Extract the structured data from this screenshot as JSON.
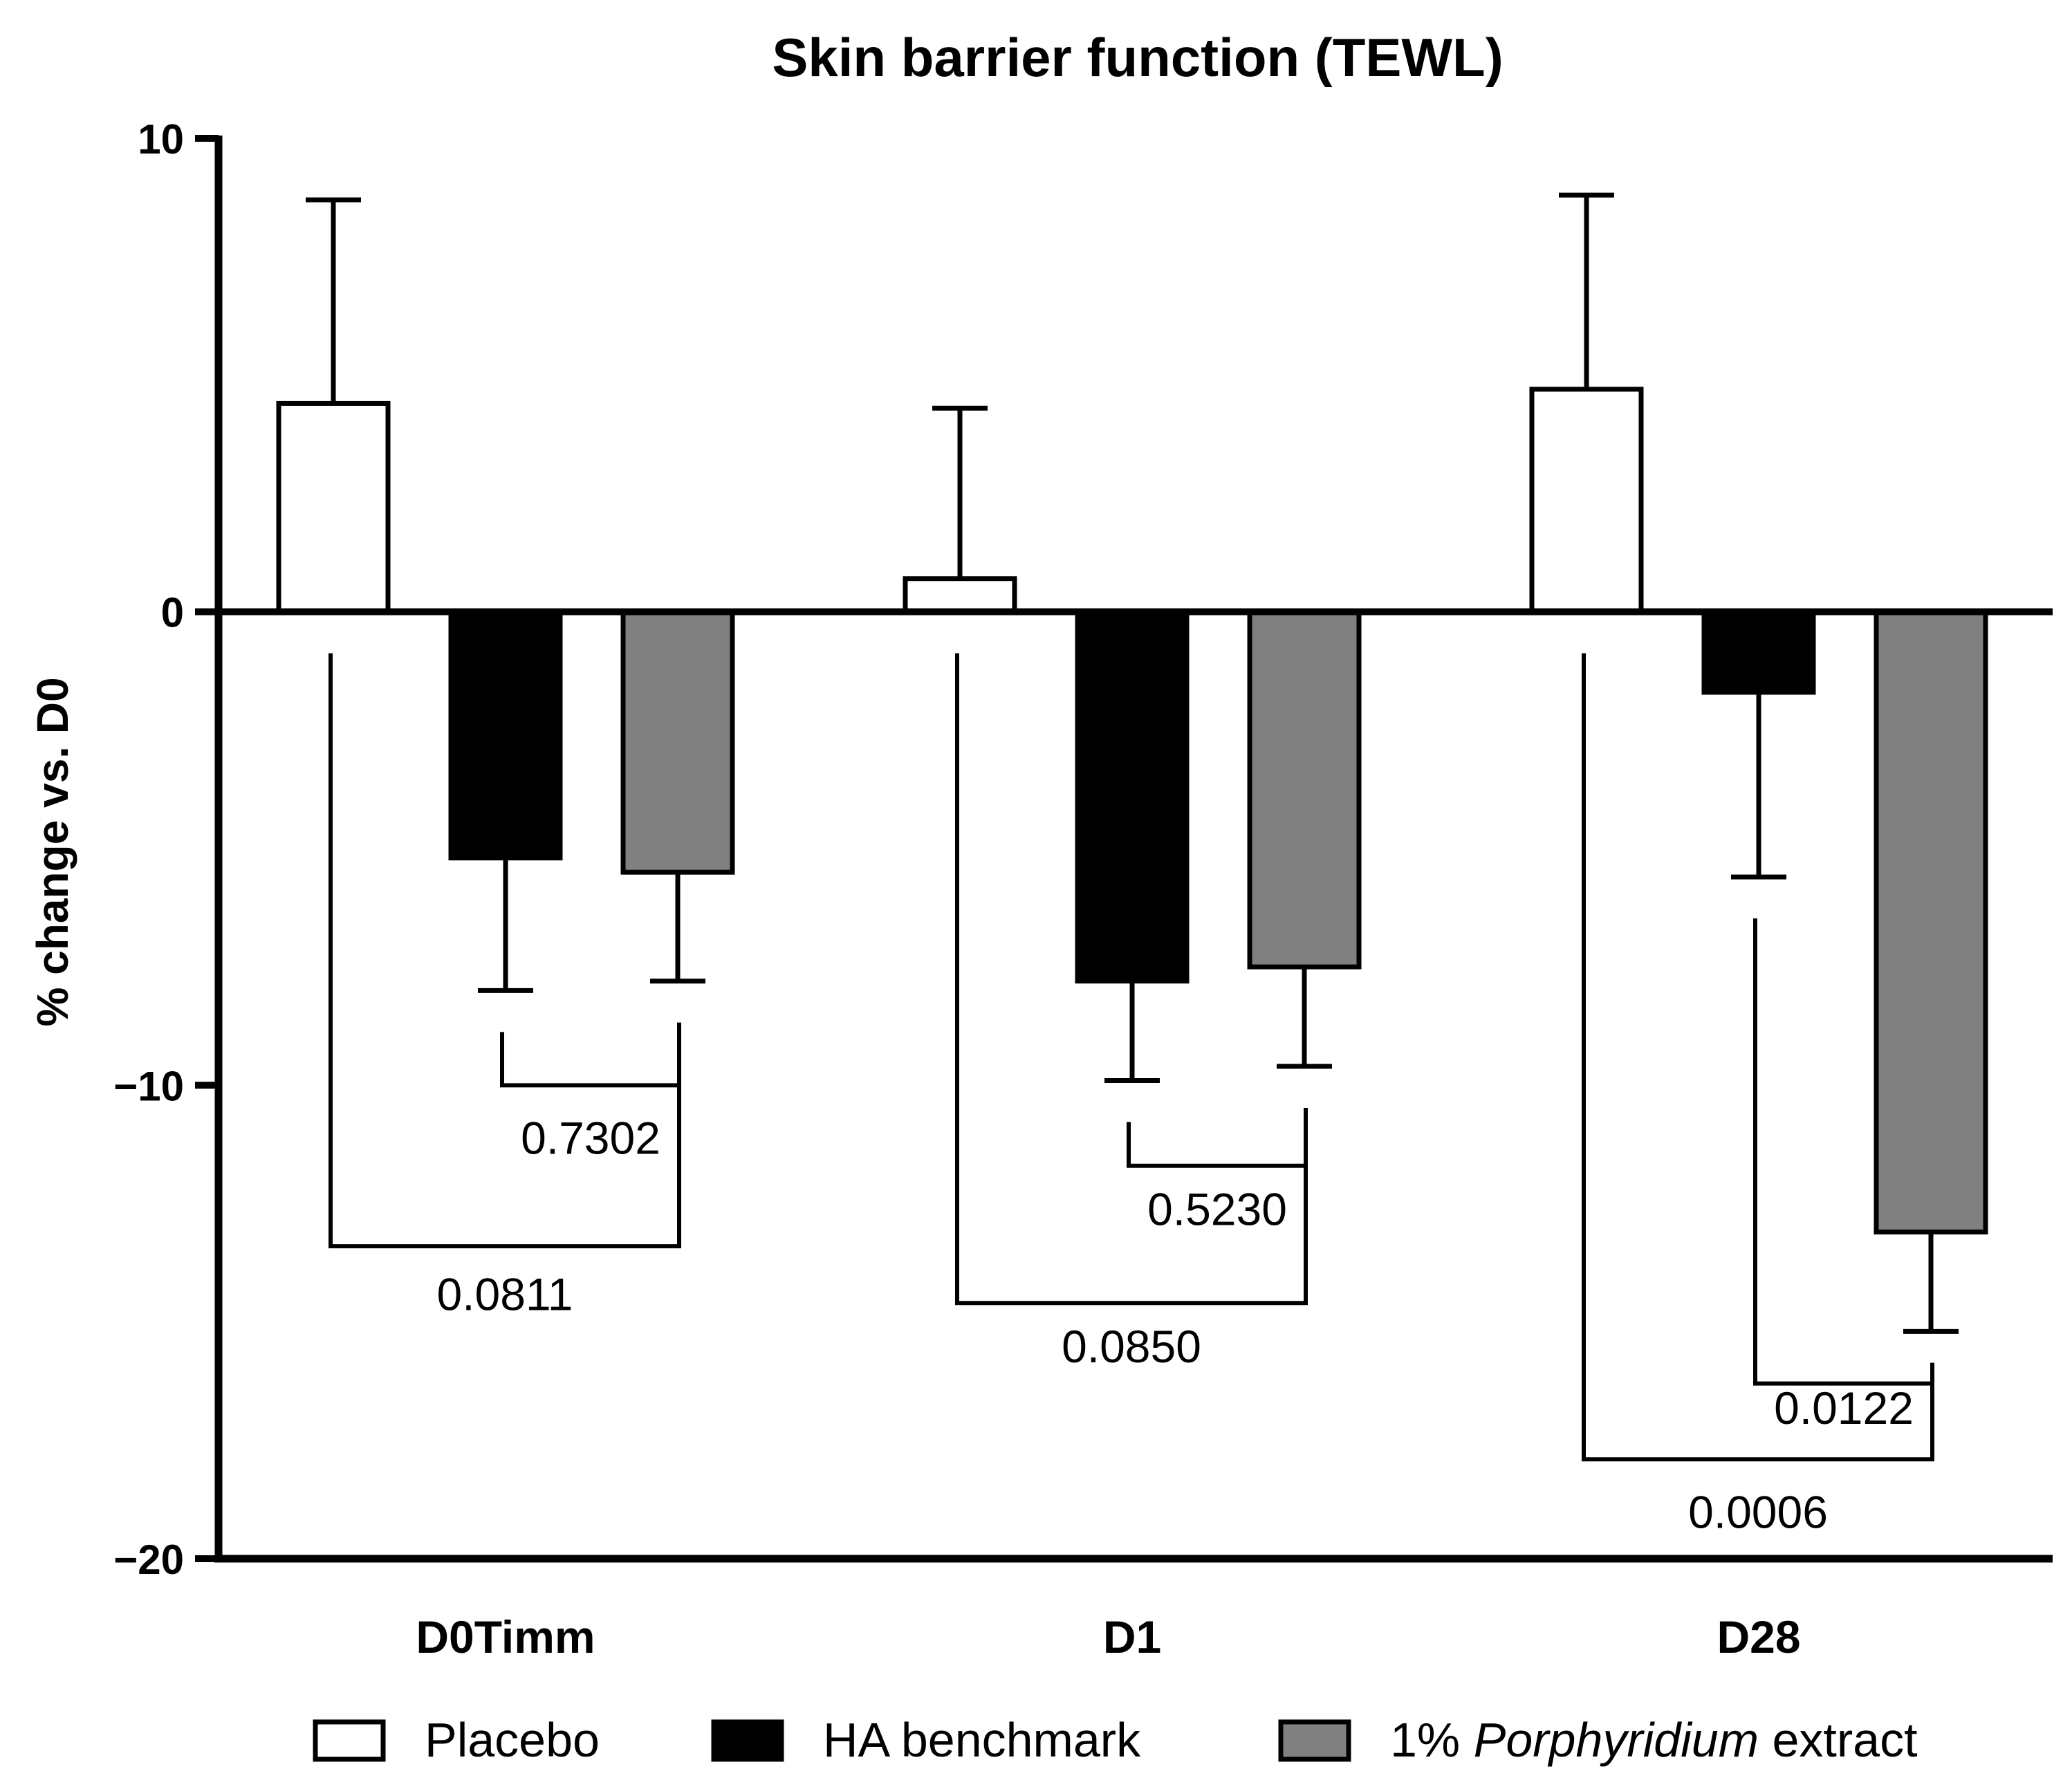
{
  "chart_data": {
    "type": "bar",
    "title": "Skin barrier function (TEWL)",
    "xlabel": "",
    "ylabel": "% change vs. D0",
    "ylim": [
      -20,
      10
    ],
    "yticks": [
      10,
      0,
      -10,
      -20
    ],
    "ytick_labels": [
      "10",
      "0",
      "−10",
      "−20"
    ],
    "categories": [
      "D0Timm",
      "D1",
      "D28"
    ],
    "series": [
      {
        "name": "Placebo",
        "color": "#ffffff",
        "values": [
          4.4,
          0.7,
          4.7
        ],
        "errors": [
          4.3,
          3.6,
          4.1
        ]
      },
      {
        "name": "HA benchmark",
        "color": "#000000",
        "values": [
          -5.2,
          -7.8,
          -1.7
        ],
        "errors": [
          2.8,
          2.1,
          3.9
        ]
      },
      {
        "name": "1% Porphyridium extract",
        "color": "#808080",
        "values": [
          -5.5,
          -7.5,
          -13.1
        ],
        "errors": [
          2.3,
          2.1,
          2.1
        ]
      }
    ],
    "comparisons": [
      {
        "category": "D0Timm",
        "from": "HA benchmark",
        "to": "1% Porphyridium extract",
        "p": "0.7302",
        "bracket_y": -10.0,
        "label_y": -11.1
      },
      {
        "category": "D0Timm",
        "from": "Placebo",
        "to": "1% Porphyridium extract",
        "p": "0.0811",
        "bracket_y": -13.4,
        "label_y": -14.4
      },
      {
        "category": "D1",
        "from": "HA benchmark",
        "to": "1% Porphyridium extract",
        "p": "0.5230",
        "bracket_y": -11.7,
        "label_y": -12.6
      },
      {
        "category": "D1",
        "from": "Placebo",
        "to": "1% Porphyridium extract",
        "p": "0.0850",
        "bracket_y": -14.6,
        "label_y": -15.5
      },
      {
        "category": "D28",
        "from": "HA benchmark",
        "to": "1% Porphyridium extract",
        "p": "0.0122",
        "bracket_y": -16.3,
        "label_y": -16.8
      },
      {
        "category": "D28",
        "from": "Placebo",
        "to": "1% Porphyridium extract",
        "p": "0.0006",
        "bracket_y": -17.9,
        "label_y": -19.0
      }
    ],
    "legend": {
      "position": "bottom",
      "entries": [
        {
          "label": "Placebo",
          "color": "#ffffff"
        },
        {
          "label": "HA benchmark",
          "color": "#000000"
        },
        {
          "label_prefix": "1% ",
          "label_italic": "Porphyridium",
          "label_suffix": " extract",
          "color": "#808080"
        }
      ]
    }
  }
}
